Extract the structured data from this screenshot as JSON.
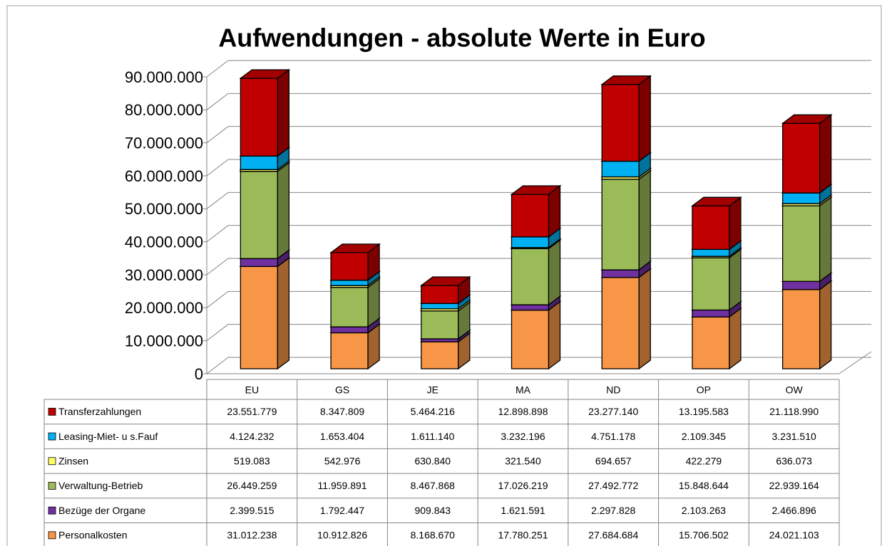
{
  "chart_data": {
    "type": "bar3d-stacked",
    "title": "Aufwendungen - absolute Werte in Euro",
    "categories": [
      "EU",
      "GS",
      "JE",
      "MA",
      "ND",
      "OP",
      "OW"
    ],
    "ylim": [
      0,
      90000000
    ],
    "yticks": [
      0,
      {
        "value": 10000000,
        "label": "10.000.000"
      },
      {
        "value": 20000000,
        "label": "20.000.000"
      },
      {
        "value": 30000000,
        "label": "30.000.000"
      },
      {
        "value": 40000000,
        "label": "40.000.000"
      },
      {
        "value": 50000000,
        "label": "50.000.000"
      },
      {
        "value": 60000000,
        "label": "60.000.000"
      },
      {
        "value": 70000000,
        "label": "70.000.000"
      },
      {
        "value": 80000000,
        "label": "80.000.000"
      },
      {
        "value": 90000000,
        "label": "90.000.000"
      }
    ],
    "grid": true,
    "series": [
      {
        "name": "Personalkosten",
        "color": "#f79646",
        "values": [
          31012238,
          10912826,
          8168670,
          17780251,
          27684684,
          15706502,
          24021103
        ],
        "value_labels": [
          "31.012.238",
          "10.912.826",
          "8.168.670",
          "17.780.251",
          "27.684.684",
          "15.706.502",
          "24.021.103"
        ]
      },
      {
        "name": "Bezüge der Organe",
        "color": "#7030a0",
        "values": [
          2399515,
          1792447,
          909843,
          1621591,
          2297828,
          2103263,
          2466896
        ],
        "value_labels": [
          "2.399.515",
          "1.792.447",
          "909.843",
          "1.621.591",
          "2.297.828",
          "2.103.263",
          "2.466.896"
        ]
      },
      {
        "name": "Verwaltung-Betrieb",
        "color": "#9bbb59",
        "values": [
          26449259,
          11959891,
          8467868,
          17026219,
          27492772,
          15848644,
          22939164
        ],
        "value_labels": [
          "26.449.259",
          "11.959.891",
          "8.467.868",
          "17.026.219",
          "27.492.772",
          "15.848.644",
          "22.939.164"
        ]
      },
      {
        "name": "Zinsen",
        "color": "#ffff66",
        "values": [
          519083,
          542976,
          630840,
          321540,
          694657,
          422279,
          636073
        ],
        "value_labels": [
          "519.083",
          "542.976",
          "630.840",
          "321.540",
          "694.657",
          "422.279",
          "636.073"
        ]
      },
      {
        "name": "Leasing-Miet- u s.Fauf",
        "color": "#00b0f0",
        "values": [
          4124232,
          1653404,
          1611140,
          3232196,
          4751178,
          2109345,
          3231510
        ],
        "value_labels": [
          "4.124.232",
          "1.653.404",
          "1.611.140",
          "3.232.196",
          "4.751.178",
          "2.109.345",
          "3.231.510"
        ]
      },
      {
        "name": "Transferzahlungen",
        "color": "#c00000",
        "values": [
          23551779,
          8347809,
          5464216,
          12898898,
          23277140,
          13195583,
          21118990
        ],
        "value_labels": [
          "23.551.779",
          "8.347.809",
          "5.464.216",
          "12.898.898",
          "23.277.140",
          "13.195.583",
          "21.118.990"
        ]
      }
    ]
  }
}
